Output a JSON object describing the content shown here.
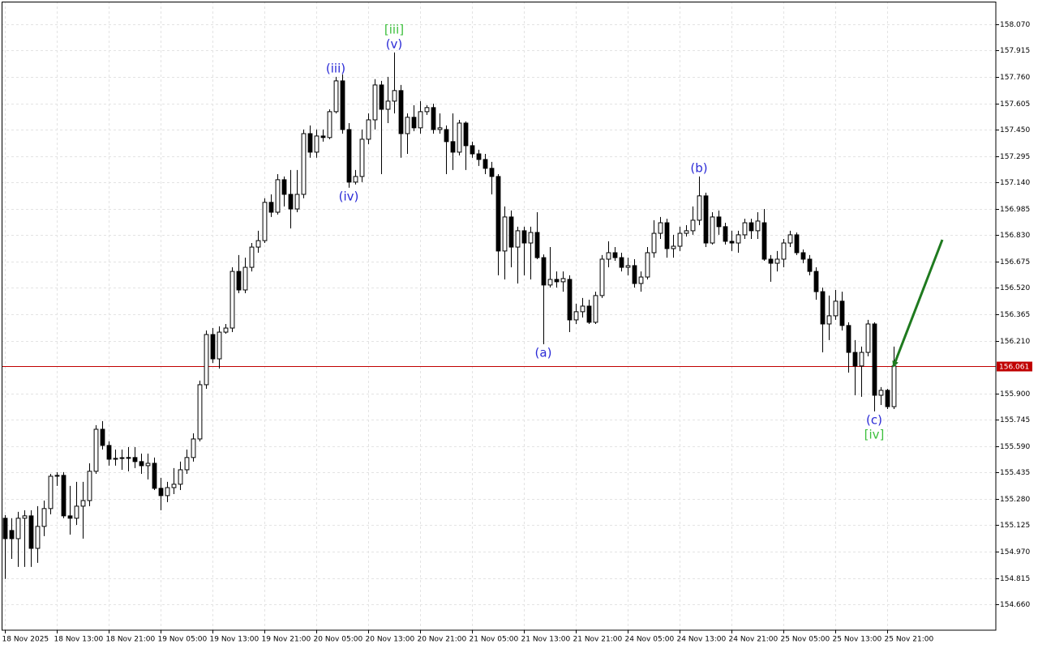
{
  "chart_data": {
    "type": "candlestick",
    "open": [
      155.166,
      155.094,
      155.046,
      155.166,
      155.18,
      154.989,
      155.118,
      155.223,
      155.413,
      155.418,
      155.18,
      155.166,
      155.237,
      155.27,
      155.442,
      155.689,
      155.594,
      155.513,
      155.518,
      155.523,
      155.523,
      155.499,
      155.475,
      155.489,
      155.342,
      155.299,
      155.346,
      155.366,
      155.451,
      155.523,
      155.632,
      155.951,
      156.246,
      156.103,
      156.26,
      156.284,
      156.617,
      156.508,
      156.641,
      156.76,
      156.798,
      157.023,
      156.965,
      157.156,
      157.07,
      156.984,
      157.07,
      157.427,
      157.318,
      157.413,
      157.404,
      157.556,
      157.737,
      157.451,
      157.142,
      157.175,
      157.394,
      157.508,
      157.713,
      157.57,
      157.618,
      157.68,
      157.427,
      157.523,
      157.461,
      157.556,
      157.58,
      157.451,
      157.451,
      157.38,
      157.318,
      157.489,
      157.356,
      157.308,
      157.275,
      157.223,
      157.175,
      156.737,
      156.937,
      156.76,
      156.856,
      156.784,
      156.846,
      156.698,
      156.537,
      156.57,
      156.556,
      156.57,
      156.332,
      156.38,
      156.413,
      156.318,
      156.475,
      156.689,
      156.727,
      156.698,
      156.641,
      156.651,
      156.546,
      156.584,
      156.727,
      156.841,
      156.903,
      156.751,
      156.765,
      156.841,
      156.856,
      156.918,
      157.061,
      156.784,
      156.937,
      156.88,
      156.794,
      156.784,
      156.832,
      156.903,
      156.856,
      156.903,
      156.689,
      156.665,
      156.689,
      156.784,
      156.832,
      156.727,
      156.689,
      156.617,
      156.498,
      156.308,
      156.356,
      156.442,
      156.299,
      156.141,
      156.061,
      156.141,
      156.308,
      155.889,
      155.918,
      155.822
    ],
    "high": [
      155.185,
      155.166,
      155.204,
      155.213,
      155.213,
      155.237,
      155.27,
      155.427,
      155.437,
      155.437,
      155.356,
      155.38,
      155.38,
      155.489,
      155.713,
      155.737,
      155.618,
      155.57,
      155.57,
      155.584,
      155.584,
      155.546,
      155.546,
      155.523,
      155.404,
      155.38,
      155.461,
      155.499,
      155.57,
      155.665,
      155.975,
      156.27,
      156.284,
      156.294,
      156.308,
      156.641,
      156.713,
      156.698,
      156.784,
      156.856,
      157.047,
      157.07,
      157.189,
      157.175,
      157.213,
      157.213,
      157.451,
      157.475,
      157.451,
      157.451,
      157.57,
      157.761,
      157.775,
      157.489,
      157.213,
      157.451,
      157.546,
      157.747,
      157.737,
      157.761,
      157.904,
      157.713,
      157.546,
      157.594,
      157.618,
      157.594,
      157.603,
      157.546,
      157.475,
      157.546,
      157.508,
      157.499,
      157.38,
      157.332,
      157.308,
      157.261,
      157.189,
      156.999,
      156.975,
      156.88,
      156.88,
      156.88,
      156.965,
      156.717,
      156.76,
      156.617,
      156.617,
      156.594,
      156.427,
      156.461,
      156.451,
      156.498,
      156.713,
      156.794,
      156.76,
      156.727,
      156.698,
      156.689,
      156.617,
      156.76,
      156.918,
      156.937,
      156.927,
      156.832,
      156.88,
      156.889,
      156.999,
      157.175,
      157.08,
      156.965,
      156.975,
      156.903,
      156.856,
      156.856,
      156.927,
      156.927,
      156.965,
      156.984,
      156.713,
      156.737,
      156.808,
      156.856,
      156.846,
      156.746,
      156.713,
      156.641,
      156.522,
      156.475,
      156.508,
      156.498,
      156.318,
      156.213,
      156.175,
      156.332,
      156.318,
      155.937,
      155.927,
      156.175
    ],
    "low": [
      154.809,
      154.927,
      154.88,
      154.88,
      154.88,
      154.904,
      155.061,
      155.189,
      155.356,
      155.166,
      155.07,
      155.127,
      155.046,
      155.237,
      155.427,
      155.57,
      155.475,
      155.475,
      155.451,
      155.442,
      155.461,
      155.427,
      155.394,
      155.332,
      155.213,
      155.261,
      155.308,
      155.332,
      155.427,
      155.499,
      155.618,
      155.927,
      156.079,
      156.046,
      156.251,
      156.26,
      156.489,
      156.489,
      156.617,
      156.727,
      156.784,
      156.937,
      156.951,
      156.999,
      156.87,
      156.965,
      157.047,
      157.285,
      157.285,
      157.38,
      157.394,
      157.546,
      157.427,
      157.109,
      157.128,
      157.142,
      157.365,
      157.451,
      157.189,
      157.489,
      157.546,
      157.285,
      157.308,
      157.442,
      157.427,
      157.537,
      157.427,
      157.427,
      157.189,
      157.213,
      157.299,
      157.213,
      157.285,
      157.237,
      157.189,
      157.07,
      156.594,
      156.57,
      156.641,
      156.546,
      156.594,
      156.57,
      156.689,
      156.189,
      156.522,
      156.522,
      156.498,
      156.26,
      156.308,
      156.346,
      156.308,
      156.308,
      156.461,
      156.641,
      156.679,
      156.617,
      156.594,
      156.522,
      156.498,
      156.57,
      156.698,
      156.808,
      156.698,
      156.698,
      156.737,
      156.822,
      156.832,
      156.889,
      156.76,
      156.775,
      156.832,
      156.775,
      156.737,
      156.727,
      156.808,
      156.808,
      156.808,
      156.679,
      156.556,
      156.617,
      156.641,
      156.76,
      156.713,
      156.665,
      156.594,
      156.451,
      156.141,
      156.213,
      156.332,
      156.27,
      156.022,
      155.889,
      155.88,
      156.118,
      155.794,
      155.832,
      155.808,
      155.808
    ],
    "close": [
      155.046,
      155.046,
      155.166,
      155.18,
      154.989,
      155.118,
      155.223,
      155.413,
      155.418,
      155.18,
      155.166,
      155.237,
      155.27,
      155.442,
      155.689,
      155.594,
      155.513,
      155.518,
      155.522,
      155.52,
      155.499,
      155.475,
      155.489,
      155.342,
      155.299,
      155.346,
      155.366,
      155.451,
      155.523,
      155.632,
      155.951,
      156.246,
      156.103,
      156.26,
      156.284,
      156.617,
      156.508,
      156.641,
      156.76,
      156.798,
      157.023,
      156.965,
      157.156,
      157.07,
      156.984,
      157.07,
      157.427,
      157.318,
      157.413,
      157.404,
      157.556,
      157.737,
      157.451,
      157.142,
      157.175,
      157.394,
      157.508,
      157.713,
      157.57,
      157.618,
      157.68,
      157.427,
      157.523,
      157.461,
      157.556,
      157.58,
      157.451,
      157.461,
      157.38,
      157.318,
      157.489,
      157.356,
      157.308,
      157.275,
      157.223,
      157.175,
      156.737,
      156.937,
      156.76,
      156.856,
      156.784,
      156.846,
      156.698,
      156.537,
      156.57,
      156.556,
      156.575,
      156.332,
      156.38,
      156.413,
      156.318,
      156.475,
      156.689,
      156.727,
      156.698,
      156.641,
      156.651,
      156.546,
      156.584,
      156.727,
      156.841,
      156.903,
      156.751,
      156.765,
      156.841,
      156.856,
      156.918,
      157.061,
      156.784,
      156.937,
      156.88,
      156.794,
      156.784,
      156.832,
      156.903,
      156.856,
      156.913,
      156.689,
      156.665,
      156.689,
      156.784,
      156.832,
      156.727,
      156.689,
      156.617,
      156.498,
      156.308,
      156.356,
      156.442,
      156.299,
      156.141,
      156.061,
      156.141,
      156.308,
      155.889,
      155.918,
      155.822,
      156.061
    ],
    "up_color": "#ffffff",
    "down_color": "#000000",
    "xlim": [
      -0.5,
      152.75
    ],
    "xticks": [
      {
        "value": 0,
        "label": "18 Nov 2025"
      },
      {
        "value": 8,
        "label": "18 Nov 13:00"
      },
      {
        "value": 16,
        "label": "18 Nov 21:00"
      },
      {
        "value": 24,
        "label": "19 Nov 05:00"
      },
      {
        "value": 32,
        "label": "19 Nov 13:00"
      },
      {
        "value": 40,
        "label": "19 Nov 21:00"
      },
      {
        "value": 48,
        "label": "20 Nov 05:00"
      },
      {
        "value": 56,
        "label": "20 Nov 13:00"
      },
      {
        "value": 64,
        "label": "20 Nov 21:00"
      },
      {
        "value": 72,
        "label": "21 Nov 05:00"
      },
      {
        "value": 80,
        "label": "21 Nov 13:00"
      },
      {
        "value": 88,
        "label": "21 Nov 21:00"
      },
      {
        "value": 96,
        "label": "24 Nov 05:00"
      },
      {
        "value": 104,
        "label": "24 Nov 13:00"
      },
      {
        "value": 112,
        "label": "24 Nov 21:00"
      },
      {
        "value": 120,
        "label": "25 Nov 05:00"
      },
      {
        "value": 128,
        "label": "25 Nov 13:00"
      },
      {
        "value": 136,
        "label": "25 Nov 21:00"
      }
    ],
    "ylim": [
      154.508,
      158.203
    ],
    "yticks": [
      {
        "value": 158.07,
        "label": "158.070"
      },
      {
        "value": 157.915,
        "label": "157.915"
      },
      {
        "value": 157.76,
        "label": "157.760"
      },
      {
        "value": 157.605,
        "label": "157.605"
      },
      {
        "value": 157.45,
        "label": "157.450"
      },
      {
        "value": 157.295,
        "label": "157.295"
      },
      {
        "value": 157.14,
        "label": "157.140"
      },
      {
        "value": 156.985,
        "label": "156.985"
      },
      {
        "value": 156.83,
        "label": "156.830"
      },
      {
        "value": 156.675,
        "label": "156.675"
      },
      {
        "value": 156.52,
        "label": "156.520"
      },
      {
        "value": 156.365,
        "label": "156.365"
      },
      {
        "value": 156.21,
        "label": "156.210"
      },
      {
        "value": 155.9,
        "label": "155.900"
      },
      {
        "value": 155.745,
        "label": "155.745"
      },
      {
        "value": 155.59,
        "label": "155.590"
      },
      {
        "value": 155.435,
        "label": "155.435"
      },
      {
        "value": 155.28,
        "label": "155.280"
      },
      {
        "value": 155.125,
        "label": "155.125"
      },
      {
        "value": 154.97,
        "label": "154.970"
      },
      {
        "value": 154.815,
        "label": "154.815"
      },
      {
        "value": 154.66,
        "label": "154.660"
      }
    ],
    "grid": true,
    "price_line": {
      "value": 156.061,
      "color": "#c00000"
    },
    "annotations": [
      {
        "text": "(v)",
        "candle": 60,
        "position": "above",
        "color": "#2a2ad6"
      },
      {
        "text": "[iii]",
        "candle": 60,
        "position": "above",
        "color": "#3cbf3c"
      },
      {
        "text": "(iii)",
        "candle": 51,
        "position": "above",
        "color": "#2a2ad6"
      },
      {
        "text": "(iv)",
        "candle": 53,
        "position": "below",
        "color": "#2a2ad6"
      },
      {
        "text": "(a)",
        "candle": 83,
        "position": "below",
        "color": "#2a2ad6"
      },
      {
        "text": "(b)",
        "candle": 107,
        "position": "above",
        "color": "#2a2ad6"
      },
      {
        "text": "(c)",
        "candle": 134,
        "position": "below",
        "color": "#2a2ad6"
      },
      {
        "text": "[iv]",
        "candle": 134,
        "position": "below",
        "color": "#3cbf3c"
      }
    ],
    "forecast": {
      "x": [
        137,
        144.5
      ],
      "y": [
        156.061,
        156.803
      ],
      "color": "#1f7a1f"
    }
  }
}
